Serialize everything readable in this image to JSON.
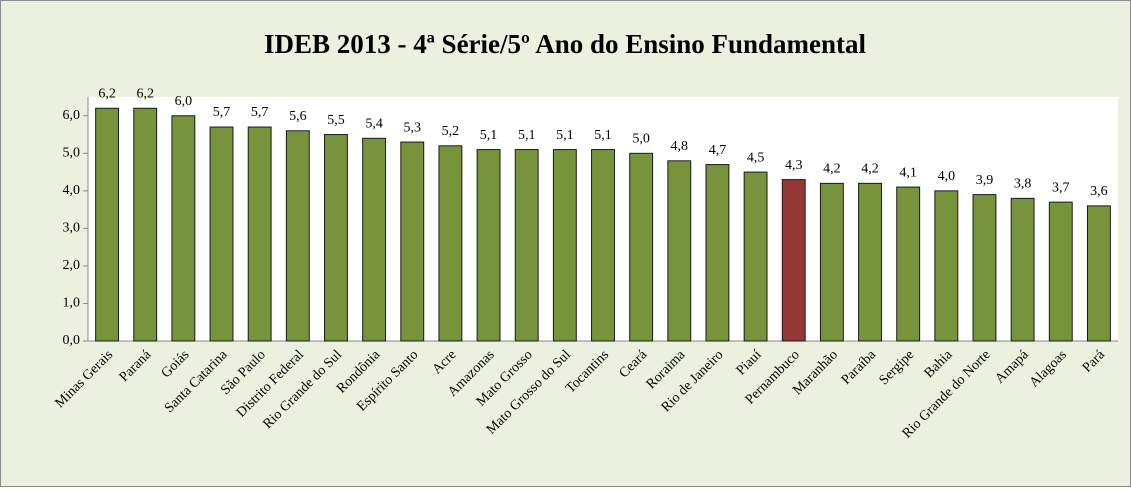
{
  "chart_data": {
    "type": "bar",
    "title": "IDEB 2013 - 4ª Série/5º Ano do Ensino Fundamental",
    "categories": [
      "Minas Gerais",
      "Paraná",
      "Goiás",
      "Santa Catarina",
      "São Paulo",
      "Distrito Federal",
      "Rio Grande do Sul",
      "Rondônia",
      "Espírito Santo",
      "Acre",
      "Amazonas",
      "Mato Grosso",
      "Mato Grosso do Sul",
      "Tocantins",
      "Ceará",
      "Roraima",
      "Rio de Janeiro",
      "Piauí",
      "Pernambuco",
      "Maranhão",
      "Paraíba",
      "Sergipe",
      "Bahia",
      "Rio Grande do Norte",
      "Amapá",
      "Alagoas",
      "Pará"
    ],
    "values": [
      6.2,
      6.2,
      6.0,
      5.7,
      5.7,
      5.6,
      5.5,
      5.4,
      5.3,
      5.2,
      5.1,
      5.1,
      5.1,
      5.1,
      5.0,
      4.8,
      4.7,
      4.5,
      4.3,
      4.2,
      4.2,
      4.1,
      4.0,
      3.9,
      3.8,
      3.7,
      3.6
    ],
    "value_labels": [
      "6,2",
      "6,2",
      "6,0",
      "5,7",
      "5,7",
      "5,6",
      "5,5",
      "5,4",
      "5,3",
      "5,2",
      "5,1",
      "5,1",
      "5,1",
      "5,1",
      "5,0",
      "4,8",
      "4,7",
      "4,5",
      "4,3",
      "4,2",
      "4,2",
      "4,1",
      "4,0",
      "3,9",
      "3,8",
      "3,7",
      "3,6"
    ],
    "colors": [
      "#77933c",
      "#77933c",
      "#77933c",
      "#77933c",
      "#77933c",
      "#77933c",
      "#77933c",
      "#77933c",
      "#77933c",
      "#77933c",
      "#77933c",
      "#77933c",
      "#77933c",
      "#77933c",
      "#77933c",
      "#77933c",
      "#77933c",
      "#77933c",
      "#953735",
      "#77933c",
      "#77933c",
      "#77933c",
      "#77933c",
      "#77933c",
      "#77933c",
      "#77933c",
      "#77933c"
    ],
    "ylim": [
      0,
      6.5
    ],
    "yticks": [
      {
        "value": 0,
        "label": "0,0"
      },
      {
        "value": 1,
        "label": "1,0"
      },
      {
        "value": 2,
        "label": "2,0"
      },
      {
        "value": 3,
        "label": "3,0"
      },
      {
        "value": 4,
        "label": "4,0"
      },
      {
        "value": 5,
        "label": "5,0"
      },
      {
        "value": 6,
        "label": "6,0"
      }
    ],
    "grid": false
  }
}
